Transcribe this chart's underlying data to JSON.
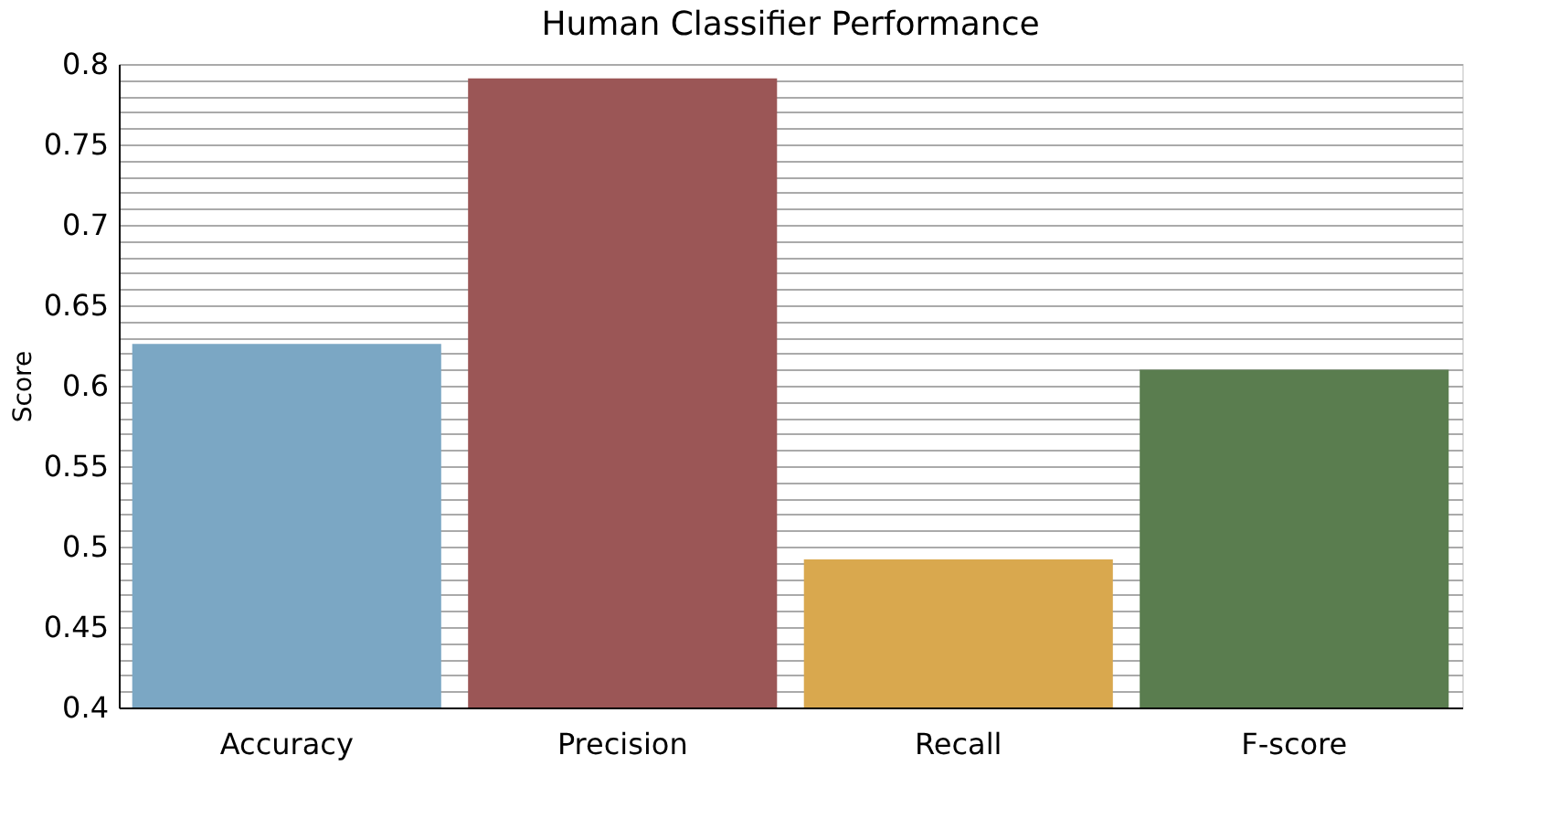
{
  "chart_data": {
    "type": "bar",
    "title": "Human Classifier Performance",
    "ylabel": "Score",
    "categories": [
      "Accuracy",
      "Precision",
      "Recall",
      "F-score"
    ],
    "values": [
      0.626,
      0.791,
      0.492,
      0.61
    ],
    "colors": [
      "#7ba7c4",
      "#9b5656",
      "#d9a84e",
      "#5a7d4f"
    ],
    "ylim": [
      0.4,
      0.8
    ],
    "yticks": [
      0.4,
      {
        "value": 0.41,
        "label": null
      },
      {
        "value": 0.42,
        "label": null
      },
      {
        "value": 0.43,
        "label": null
      },
      {
        "value": 0.44,
        "label": null
      },
      0.45,
      {
        "value": 0.46,
        "label": null
      },
      {
        "value": 0.47,
        "label": null
      },
      {
        "value": 0.48,
        "label": null
      },
      {
        "value": 0.49,
        "label": null
      },
      0.5,
      {
        "value": 0.51,
        "label": null
      },
      {
        "value": 0.52,
        "label": null
      },
      {
        "value": 0.53,
        "label": null
      },
      {
        "value": 0.54,
        "label": null
      },
      0.55,
      {
        "value": 0.56,
        "label": null
      },
      {
        "value": 0.57,
        "label": null
      },
      {
        "value": 0.58,
        "label": null
      },
      {
        "value": 0.59,
        "label": null
      },
      0.6,
      {
        "value": 0.61,
        "label": null
      },
      {
        "value": 0.62,
        "label": null
      },
      {
        "value": 0.63,
        "label": null
      },
      {
        "value": 0.64,
        "label": null
      },
      0.65,
      {
        "value": 0.66,
        "label": null
      },
      {
        "value": 0.67,
        "label": null
      },
      {
        "value": 0.68,
        "label": null
      },
      {
        "value": 0.69,
        "label": null
      },
      0.7,
      {
        "value": 0.71,
        "label": null
      },
      {
        "value": 0.72,
        "label": null
      },
      {
        "value": 0.73,
        "label": null
      },
      {
        "value": 0.74,
        "label": null
      },
      0.75,
      {
        "value": 0.76,
        "label": null
      },
      {
        "value": 0.77,
        "label": null
      },
      {
        "value": 0.78,
        "label": null
      },
      {
        "value": 0.79,
        "label": null
      },
      0.8
    ],
    "grid": "y"
  }
}
